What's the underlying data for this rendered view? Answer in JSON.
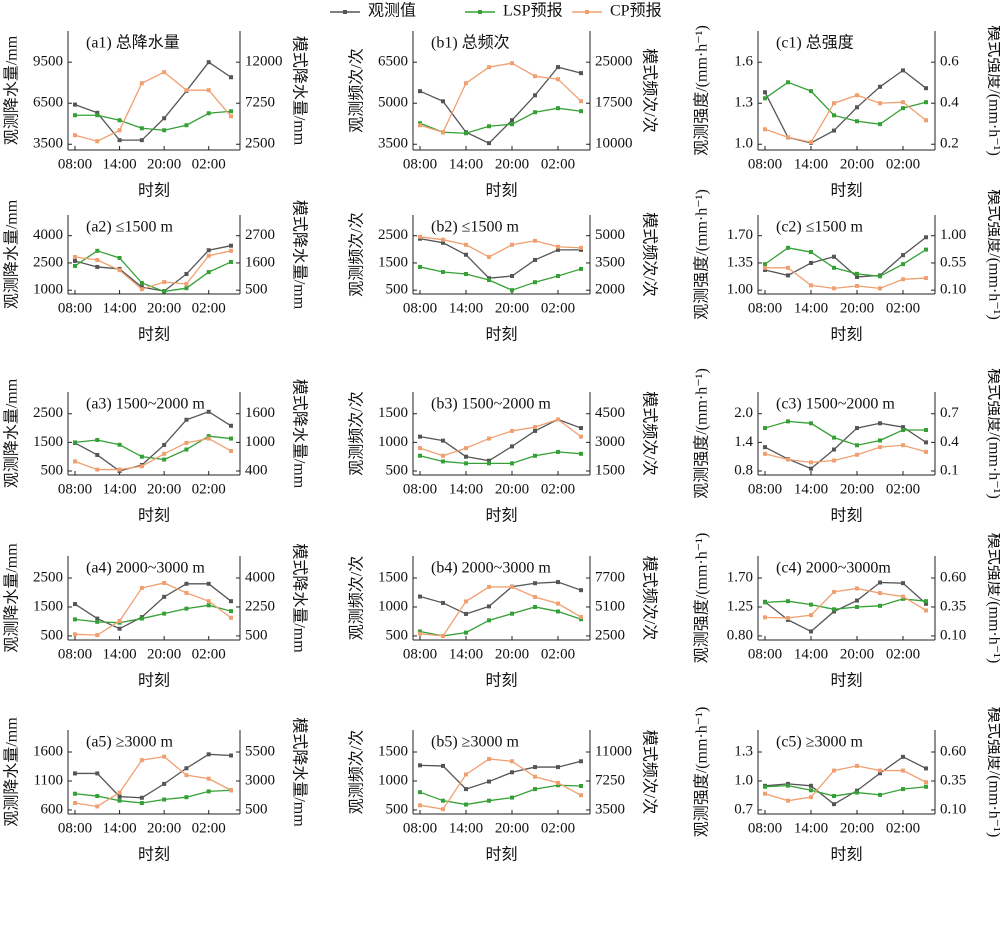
{
  "legend": [
    {
      "name": "观测值",
      "color": "#555555"
    },
    {
      "name": "LSP预报",
      "color": "#35a035"
    },
    {
      "name": "CP预报",
      "color": "#f0a070"
    }
  ],
  "chart_data": [
    {
      "type": "line",
      "title": "(a1) 总降水量",
      "xlabel": "时刻",
      "ylabel": "观测降水量/mm",
      "y2label": "模式降水量/mm",
      "categories": [
        "08:00",
        null,
        "14:00",
        null,
        "20:00",
        null,
        "02:00",
        null
      ],
      "ylim": [
        3080,
        11780
      ],
      "yticks": [
        3500,
        6500,
        9500
      ],
      "y2lim": [
        1835,
        15610
      ],
      "y2ticks": [
        2500,
        7250,
        12000
      ],
      "series": [
        {
          "values": [
            6400,
            5800,
            3800,
            3800,
            5400,
            7400,
            9500,
            8400
          ]
        },
        {
          "axis": "y2",
          "values": [
            5860,
            5860,
            5280,
            4350,
            4120,
            4700,
            6090,
            6320
          ]
        },
        {
          "axis": "y2",
          "values": [
            3540,
            2850,
            4120,
            9570,
            10850,
            8760,
            8760,
            5740
          ]
        }
      ]
    },
    {
      "type": "line",
      "title": "(b1) 总频次",
      "xlabel": "时刻",
      "ylabel": "观测频次/次",
      "y2label": "模式频次/次",
      "categories": [
        "08:00",
        null,
        "14:00",
        null,
        "20:00",
        null,
        "02:00",
        null
      ],
      "ylim": [
        3290,
        7640
      ],
      "yticks": [
        3500,
        5000,
        6500
      ],
      "y2lim": [
        8950,
        30700
      ],
      "y2ticks": [
        10000,
        17500,
        25000
      ],
      "series": [
        {
          "values": [
            5440,
            5070,
            3940,
            3540,
            4380,
            5290,
            6320,
            6100
          ]
        },
        {
          "axis": "y2",
          "values": [
            13840,
            12200,
            12010,
            13290,
            13660,
            15850,
            16590,
            16040
          ]
        },
        {
          "axis": "y2",
          "values": [
            13480,
            12200,
            21160,
            24090,
            24820,
            22440,
            21890,
            17870
          ]
        }
      ]
    },
    {
      "type": "line",
      "title": "(c1) 总强度",
      "xlabel": "时刻",
      "ylabel": "观测强度/(mm·h⁻¹)",
      "y2label": "模式强度/(mm·h⁻¹)",
      "categories": [
        "08:00",
        null,
        "14:00",
        null,
        "20:00",
        null,
        "02:00",
        null
      ],
      "ylim": [
        0.958,
        1.828
      ],
      "yticks": [
        {
          "value": 1.0,
          "label": "1.0"
        },
        1.3,
        1.6
      ],
      "y2lim": [
        0.172,
        0.752
      ],
      "y2ticks": [
        0.2,
        0.4,
        0.6
      ],
      "series": [
        {
          "values": [
            1.38,
            1.05,
            1.01,
            1.1,
            1.27,
            1.42,
            1.54,
            1.41
          ]
        },
        {
          "axis": "y2",
          "values": [
            0.424,
            0.502,
            0.459,
            0.341,
            0.312,
            0.298,
            0.376,
            0.405
          ]
        },
        {
          "axis": "y2",
          "values": [
            0.273,
            0.234,
            0.21,
            0.4,
            0.439,
            0.4,
            0.405,
            0.317
          ]
        }
      ]
    },
    {
      "type": "line",
      "title": "(a2) ≤1500 m",
      "xlabel": "时刻",
      "ylabel": "观测降水量/mm",
      "y2label": "模式降水量/mm",
      "categories": [
        "08:00",
        null,
        "14:00",
        null,
        "20:00",
        null,
        "02:00",
        null
      ],
      "ylim": [
        790,
        5140
      ],
      "yticks": [
        1000,
        2500,
        4000
      ],
      "y2lim": [
        346,
        3536
      ],
      "y2ticks": [
        500,
        1600,
        2700
      ],
      "series": [
        {
          "values": [
            2610,
            2280,
            2170,
            1170,
            950,
            1890,
            3200,
            3450
          ]
        },
        {
          "axis": "y2",
          "values": [
            1480,
            2090,
            1800,
            790,
            450,
            580,
            1230,
            1640
          ]
        },
        {
          "axis": "y2",
          "values": [
            1840,
            1720,
            1310,
            540,
            830,
            750,
            1890,
            2090
          ]
        }
      ]
    },
    {
      "type": "line",
      "title": "(b2) ≤1500 m",
      "xlabel": "时刻",
      "ylabel": "观测频次/次",
      "y2label": "模式频次/次",
      "categories": [
        "08:00",
        null,
        "14:00",
        null,
        "20:00",
        null,
        "02:00",
        null
      ],
      "ylim": [
        360,
        3260
      ],
      "yticks": [
        500,
        1500,
        2500
      ],
      "y2lim": [
        1790,
        6140
      ],
      "y2ticks": [
        2000,
        3500,
        5000
      ],
      "series": [
        {
          "values": [
            2390,
            2240,
            1800,
            940,
            1020,
            1610,
            1980,
            1980
          ]
        },
        {
          "axis": "y2",
          "values": [
            3280,
            3000,
            2890,
            2560,
            2000,
            2440,
            2780,
            3170
          ]
        },
        {
          "axis": "y2",
          "values": [
            4940,
            4780,
            4500,
            3830,
            4500,
            4720,
            4390,
            4330
          ]
        }
      ]
    },
    {
      "type": "line",
      "title": "(c2) ≤1500 m",
      "xlabel": "时刻",
      "ylabel": "观测强度/(mm·h⁻¹)",
      "y2label": "模式强度/(mm·h⁻¹)",
      "categories": [
        "08:00",
        null,
        "14:00",
        null,
        "20:00",
        null,
        "02:00",
        null
      ],
      "ylim": [
        0.951,
        1.966
      ],
      "yticks": [
        {
          "value": 1.0,
          "label": "1.00"
        },
        1.35,
        {
          "value": 1.7,
          "label": "1.70"
        }
      ],
      "y2lim": [
        0.037,
        1.342
      ],
      "y2ticks": [
        {
          "value": 0.1,
          "label": "0.10"
        },
        0.55,
        {
          "value": 1.0,
          "label": "1.00"
        }
      ],
      "series": [
        {
          "values": [
            1.26,
            1.19,
            1.35,
            1.43,
            1.17,
            1.19,
            1.45,
            1.68
          ]
        },
        {
          "axis": "y2",
          "values": [
            0.53,
            0.8,
            0.73,
            0.47,
            0.37,
            0.33,
            0.53,
            0.77
          ]
        },
        {
          "axis": "y2",
          "values": [
            0.47,
            0.47,
            0.18,
            0.13,
            0.17,
            0.13,
            0.28,
            0.3
          ]
        }
      ]
    },
    {
      "type": "line",
      "title": "(a3) 1500~2000 m",
      "xlabel": "时刻",
      "ylabel": "观测降水量/mm",
      "y2label": "模式降水量/mm",
      "categories": [
        "08:00",
        null,
        "14:00",
        null,
        "20:00",
        null,
        "02:00",
        null
      ],
      "ylim": [
        360,
        3260
      ],
      "yticks": [
        500,
        1500,
        2500
      ],
      "y2lim": [
        316,
        2056
      ],
      "y2ticks": [
        400,
        1000,
        1600
      ],
      "series": [
        {
          "values": [
            1480,
            1060,
            500,
            710,
            1410,
            2290,
            2570,
            2080
          ]
        },
        {
          "axis": "y2",
          "values": [
            1000,
            1050,
            950,
            700,
            640,
            850,
            1130,
            1080
          ]
        },
        {
          "axis": "y2",
          "values": [
            600,
            430,
            430,
            500,
            760,
            990,
            1080,
            820
          ]
        }
      ]
    },
    {
      "type": "line",
      "title": "(b3) 1500~2000 m",
      "xlabel": "时刻",
      "ylabel": "观测频次/次",
      "y2label": "模式频次/次",
      "categories": [
        "08:00",
        null,
        "14:00",
        null,
        "20:00",
        null,
        "02:00",
        null
      ],
      "ylim": [
        430,
        1880
      ],
      "yticks": [
        500,
        1000,
        1500
      ],
      "y2lim": [
        1290,
        5640
      ],
      "y2ticks": [
        1500,
        3000,
        4500
      ],
      "series": [
        {
          "values": [
            1100,
            1030,
            750,
            680,
            930,
            1200,
            1400,
            1250
          ]
        },
        {
          "axis": "y2",
          "values": [
            2300,
            2000,
            1900,
            1900,
            1900,
            2300,
            2500,
            2400
          ]
        },
        {
          "axis": "y2",
          "values": [
            2700,
            2300,
            2700,
            3200,
            3600,
            3800,
            4200,
            3300
          ]
        }
      ]
    },
    {
      "type": "line",
      "title": "(c3) 1500~2000 m",
      "xlabel": "时刻",
      "ylabel": "观测强度/(mm·h⁻¹)",
      "y2label": "模式强度/(mm·h⁻¹)",
      "categories": [
        "08:00",
        null,
        "14:00",
        null,
        "20:00",
        null,
        "02:00",
        null
      ],
      "ylim": [
        0.716,
        2.456
      ],
      "yticks": [
        0.8,
        1.4,
        {
          "value": 2.0,
          "label": "2.0"
        }
      ],
      "y2lim": [
        0.058,
        0.928
      ],
      "y2ticks": [
        0.1,
        0.4,
        0.7
      ],
      "series": [
        {
          "values": [
            1.3,
            1.05,
            0.85,
            1.25,
            1.7,
            1.8,
            1.72,
            1.4
          ]
        },
        {
          "axis": "y2",
          "values": [
            0.55,
            0.62,
            0.6,
            0.45,
            0.37,
            0.42,
            0.53,
            0.53
          ]
        },
        {
          "axis": "y2",
          "values": [
            0.28,
            0.22,
            0.19,
            0.21,
            0.27,
            0.35,
            0.37,
            0.3
          ]
        }
      ]
    },
    {
      "type": "line",
      "title": "(a4) 2000~3000 m",
      "xlabel": "时刻",
      "ylabel": "观测降水量/mm",
      "y2label": "模式降水量/mm",
      "categories": [
        "08:00",
        null,
        "14:00",
        null,
        "20:00",
        null,
        "02:00",
        null
      ],
      "ylim": [
        360,
        3260
      ],
      "yticks": [
        500,
        1500,
        2500
      ],
      "y2lim": [
        255,
        5330
      ],
      "y2ticks": [
        500,
        2250,
        4000
      ],
      "series": [
        {
          "values": [
            1600,
            1100,
            750,
            1150,
            1850,
            2300,
            2300,
            1700
          ]
        },
        {
          "axis": "y2",
          "values": [
            1500,
            1350,
            1300,
            1550,
            1850,
            2150,
            2350,
            2000
          ]
        },
        {
          "axis": "y2",
          "values": [
            600,
            550,
            1400,
            3400,
            3700,
            3100,
            2600,
            1600
          ]
        }
      ]
    },
    {
      "type": "line",
      "title": "(b4) 2000~3000 m",
      "xlabel": "时刻",
      "ylabel": "观测频次/次",
      "y2label": "模式频次/次",
      "categories": [
        "08:00",
        null,
        "14:00",
        null,
        "20:00",
        null,
        "02:00",
        null
      ],
      "ylim": [
        430,
        1880
      ],
      "yticks": [
        500,
        1000,
        1500
      ],
      "y2lim": [
        2136,
        9676
      ],
      "y2ticks": [
        2500,
        5100,
        7700
      ],
      "series": [
        {
          "values": [
            1180,
            1070,
            880,
            1010,
            1350,
            1410,
            1430,
            1290
          ]
        },
        {
          "axis": "y2",
          "values": [
            2900,
            2500,
            2800,
            3900,
            4500,
            5100,
            4700,
            4000
          ]
        },
        {
          "axis": "y2",
          "values": [
            2700,
            2500,
            5600,
            6900,
            6900,
            6000,
            5400,
            4200
          ]
        }
      ]
    },
    {
      "type": "line",
      "title": "(c4) 2000~3000m",
      "xlabel": "时刻",
      "ylabel": "观测强度/(mm·h⁻¹)",
      "y2label": "模式强度/(mm·h⁻¹)",
      "categories": [
        "08:00",
        null,
        "14:00",
        null,
        "20:00",
        null,
        "02:00",
        null
      ],
      "ylim": [
        0.737,
        2.042
      ],
      "yticks": [
        {
          "value": 0.8,
          "label": "0.80"
        },
        1.25,
        {
          "value": 1.7,
          "label": "1.70"
        }
      ],
      "y2lim": [
        0.065,
        0.79
      ],
      "y2ticks": [
        {
          "value": 0.1,
          "label": "0.10"
        },
        0.35,
        {
          "value": 0.6,
          "label": "0.60"
        }
      ],
      "series": [
        {
          "values": [
            1.33,
            1.05,
            0.87,
            1.18,
            1.35,
            1.63,
            1.62,
            1.3
          ]
        },
        {
          "axis": "y2",
          "values": [
            0.39,
            0.4,
            0.37,
            0.33,
            0.35,
            0.36,
            0.42,
            0.4
          ]
        },
        {
          "axis": "y2",
          "values": [
            0.26,
            0.255,
            0.28,
            0.48,
            0.51,
            0.47,
            0.44,
            0.32
          ]
        }
      ]
    },
    {
      "type": "line",
      "title": "(a5) ≥3000 m",
      "xlabel": "时刻",
      "ylabel": "观测降水量/mm",
      "y2label": "模式降水量/mm",
      "categories": [
        "08:00",
        null,
        "14:00",
        null,
        "20:00",
        null,
        "02:00",
        null
      ],
      "ylim": [
        530,
        1980
      ],
      "yticks": [
        600,
        1100,
        1600
      ],
      "y2lim": [
        150,
        7400
      ],
      "y2ticks": [
        500,
        3000,
        5500
      ],
      "series": [
        {
          "values": [
            1230,
            1230,
            830,
            810,
            1050,
            1320,
            1560,
            1540
          ]
        },
        {
          "axis": "y2",
          "values": [
            1900,
            1700,
            1300,
            1100,
            1400,
            1600,
            2100,
            2200
          ]
        },
        {
          "axis": "y2",
          "values": [
            1100,
            800,
            2000,
            4800,
            5100,
            3500,
            3200,
            2200
          ]
        }
      ]
    },
    {
      "type": "line",
      "title": "(b5) ≥3000 m",
      "xlabel": "时刻",
      "ylabel": "观测频次/次",
      "y2label": "模式频次/次",
      "categories": [
        "08:00",
        null,
        "14:00",
        null,
        "20:00",
        null,
        "02:00",
        null
      ],
      "ylim": [
        430,
        1880
      ],
      "yticks": [
        500,
        1000,
        1500
      ],
      "y2lim": [
        2975,
        13850
      ],
      "y2ticks": [
        3500,
        7250,
        11000
      ],
      "series": [
        {
          "values": [
            1270,
            1260,
            860,
            990,
            1150,
            1240,
            1240,
            1340
          ]
        },
        {
          "axis": "y2",
          "values": [
            5800,
            4700,
            4200,
            4700,
            5100,
            6200,
            6700,
            6600
          ]
        },
        {
          "axis": "y2",
          "values": [
            4100,
            3600,
            8100,
            10100,
            9800,
            7800,
            7000,
            5400
          ]
        }
      ]
    },
    {
      "type": "line",
      "title": "(c5) ≥3000 m",
      "xlabel": "时刻",
      "ylabel": "观测强度/(mm·h⁻¹)",
      "y2label": "模式强度/(mm·h⁻¹)",
      "categories": [
        "08:00",
        null,
        "14:00",
        null,
        "20:00",
        null,
        "02:00",
        null
      ],
      "ylim": [
        0.658,
        1.528
      ],
      "yticks": [
        0.7,
        {
          "value": 1.0,
          "label": "1.0"
        },
        1.3
      ],
      "y2lim": [
        0.065,
        0.79
      ],
      "y2ticks": [
        {
          "value": 0.1,
          "label": "0.10"
        },
        0.35,
        {
          "value": 0.6,
          "label": "0.60"
        }
      ],
      "series": [
        {
          "values": [
            0.95,
            0.97,
            0.95,
            0.76,
            0.9,
            1.08,
            1.25,
            1.13
          ]
        },
        {
          "axis": "y2",
          "values": [
            0.3,
            0.31,
            0.27,
            0.22,
            0.25,
            0.23,
            0.28,
            0.3
          ]
        },
        {
          "axis": "y2",
          "values": [
            0.24,
            0.18,
            0.21,
            0.44,
            0.48,
            0.44,
            0.44,
            0.34
          ]
        }
      ]
    }
  ]
}
